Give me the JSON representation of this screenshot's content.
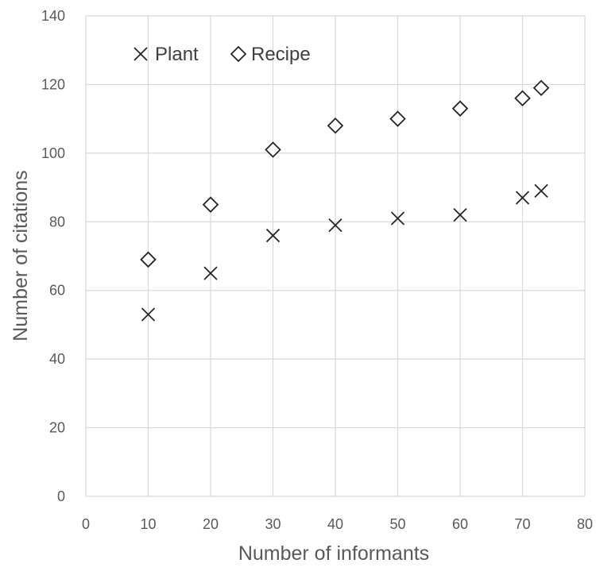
{
  "chart_data": {
    "type": "scatter",
    "xlabel": "Number of informants",
    "ylabel": "Number of citations",
    "xlim": [
      0,
      80
    ],
    "ylim": [
      0,
      140
    ],
    "xticks": [
      0,
      10,
      20,
      30,
      40,
      50,
      60,
      70,
      80
    ],
    "yticks": [
      0,
      20,
      40,
      60,
      80,
      100,
      120,
      140
    ],
    "grid": true,
    "legend_position": "top-left",
    "series": [
      {
        "name": "Plant",
        "marker": "x",
        "x": [
          10,
          20,
          30,
          40,
          50,
          60,
          70,
          73
        ],
        "y": [
          53,
          65,
          76,
          79,
          81,
          82,
          87,
          89
        ]
      },
      {
        "name": "Recipe",
        "marker": "diamond",
        "x": [
          10,
          20,
          30,
          40,
          50,
          60,
          70,
          73
        ],
        "y": [
          69,
          85,
          101,
          108,
          110,
          113,
          116,
          119
        ]
      }
    ]
  }
}
